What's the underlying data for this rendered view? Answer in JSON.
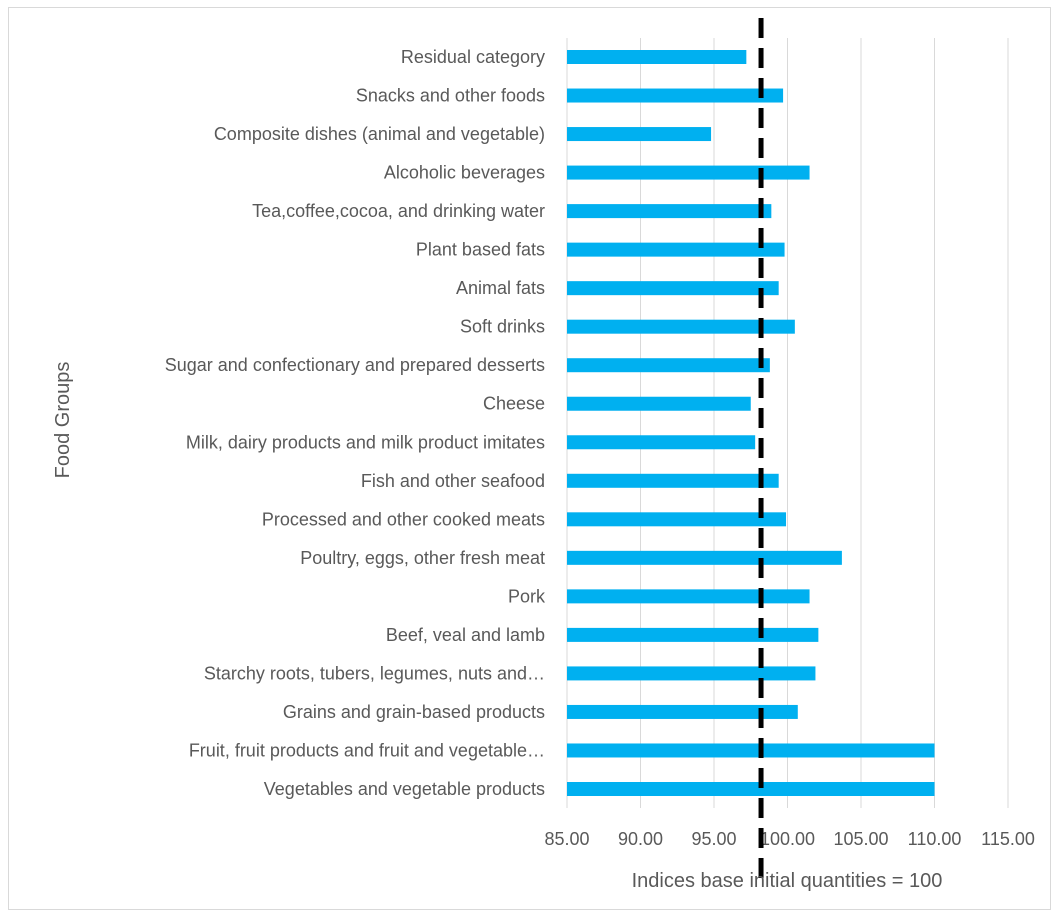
{
  "chart_data": {
    "type": "bar",
    "orientation": "horizontal",
    "title": "",
    "xlabel": "Indices base initial quantities = 100",
    "ylabel": "Food Groups",
    "xlim": [
      85,
      115
    ],
    "xticks": [
      "85.00",
      "90.00",
      "95.00",
      "100.00",
      "105.00",
      "110.00",
      "115.00"
    ],
    "grid": true,
    "legend": "none",
    "bar_color": "#00b0f0",
    "reference_line": {
      "value": 98.2,
      "style": "dashed",
      "color": "#000000"
    },
    "categories": [
      "Residual category",
      "Snacks and other foods",
      "Composite dishes (animal and vegetable)",
      "Alcoholic beverages",
      "Tea,coffee,cocoa, and drinking water",
      "Plant based fats",
      "Animal fats",
      "Soft drinks",
      "Sugar and confectionary and prepared desserts",
      "Cheese",
      "Milk, dairy products and milk product imitates",
      "Fish and other seafood",
      "Processed and other cooked meats",
      "Poultry, eggs, other fresh meat",
      "Pork",
      "Beef, veal and lamb",
      "Starchy roots, tubers, legumes, nuts and…",
      "Grains and grain-based products",
      "Fruit, fruit products and fruit and vegetable…",
      "Vegetables and vegetable products"
    ],
    "values": [
      97.2,
      99.7,
      94.8,
      101.5,
      98.9,
      99.8,
      99.4,
      100.5,
      98.8,
      97.5,
      97.8,
      99.4,
      99.9,
      103.7,
      101.5,
      102.1,
      101.9,
      100.7,
      110.0,
      110.0
    ]
  }
}
